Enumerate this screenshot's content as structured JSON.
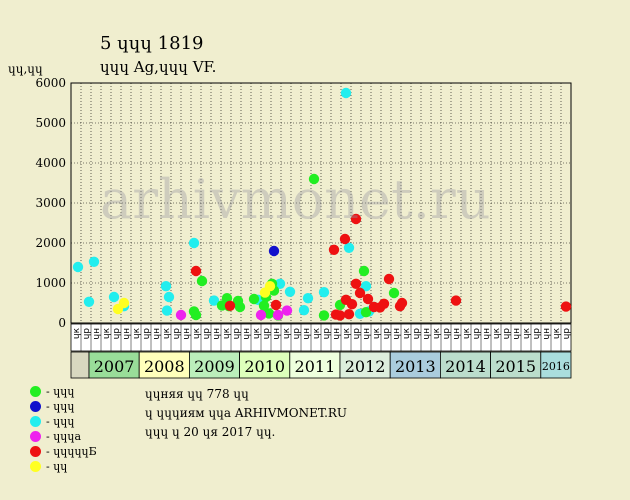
{
  "title_line1": "5 ɥɥɥ 1819",
  "title_line2": "ɥɥɥ Ag,ɥɥɥ VF.",
  "watermark": "arhivmonet.ru",
  "notes": {
    "line1": "ɥɥняя ɥɥ 778 ɥɥ",
    "line2": "ɥ ɥɥɥиям ɥɥа ARHIVMONET.RU",
    "line3": "ɥɥɥ ɥ 20 ɥя 2017 ɥɥ."
  },
  "colors": {
    "background": "#f0eecf",
    "green": "#22ee22",
    "blue": "#1111cc",
    "cyan": "#22eeee",
    "magenta": "#ee22ee",
    "red": "#ee1111",
    "yellow": "#ffff22"
  },
  "chart_data": {
    "type": "scatter",
    "title": "5 ɥɥɥ 1819",
    "subtitle": "ɥɥɥ Ag,ɥɥɥ VF.",
    "ylabel": "ɥɥ,ɥɥ",
    "ylim": [
      0,
      6000
    ],
    "yticks": [
      "0",
      "1000",
      "2000",
      "3000",
      "4000",
      "5000",
      "6000"
    ],
    "grid": true,
    "half_year_labels": [
      "ɥк",
      "ɥр",
      "ɥн",
      "ɥк",
      "ɥр",
      "ɥн",
      "ɥк",
      "ɥр",
      "ɥн",
      "ɥк",
      "ɥр",
      "ɥн",
      "ɥк",
      "ɥр",
      "ɥн",
      "ɥк",
      "ɥр",
      "ɥн",
      "ɥк",
      "ɥр",
      "ɥн",
      "ɥк",
      "ɥр",
      "ɥн",
      "ɥк",
      "ɥр",
      "ɥн",
      "ɥк",
      "ɥр",
      "ɥн",
      "ɥк",
      "ɥр",
      "ɥн",
      "ɥк",
      "ɥр",
      "ɥн",
      "ɥк",
      "ɥр",
      "ɥн",
      "ɥк",
      "ɥр",
      "ɥн",
      "ɥк",
      "ɥр",
      "ɥн",
      "ɥк",
      "ɥр",
      "ɥн",
      "ɥк",
      "ɥр"
    ],
    "years": [
      {
        "label": "2007",
        "fill": "#99dd99"
      },
      {
        "label": "2008",
        "fill": "#ffffbb"
      },
      {
        "label": "2009",
        "fill": "#bbeebb"
      },
      {
        "label": "2010",
        "fill": "#ddffbb"
      },
      {
        "label": "2011",
        "fill": "#eeffdd"
      },
      {
        "label": "2012",
        "fill": "#ddeedd"
      },
      {
        "label": "2013",
        "fill": "#aaccdd"
      },
      {
        "label": "2014",
        "fill": "#bbddcc"
      },
      {
        "label": "2015",
        "fill": "#bbddcc"
      },
      {
        "label": "2016",
        "fill": "#aadddd"
      }
    ],
    "legend": [
      {
        "label": "- ɥɥɥ",
        "color": "#22ee22"
      },
      {
        "label": "- ɥɥɥ",
        "color": "#1111cc"
      },
      {
        "label": "- ɥɥɥ",
        "color": "#22eeee"
      },
      {
        "label": "- ɥɥɥа",
        "color": "#ee22ee"
      },
      {
        "label": "- ɥɥɥɥɥБ",
        "color": "#ee1111"
      },
      {
        "label": "- ɥɥ",
        "color": "#ffff22"
      }
    ],
    "series": [
      {
        "color": "#22eeee",
        "points": [
          [
            0.2,
            1400
          ],
          [
            1.3,
            530
          ],
          [
            1.8,
            1530
          ],
          [
            3.8,
            650
          ],
          [
            4.8,
            420
          ],
          [
            9.0,
            920
          ],
          [
            9.1,
            310
          ],
          [
            9.3,
            650
          ],
          [
            11.8,
            2000
          ],
          [
            13.8,
            560
          ],
          [
            18.2,
            580
          ],
          [
            20.4,
            980
          ],
          [
            21.4,
            780
          ],
          [
            22.8,
            320
          ],
          [
            23.2,
            620
          ],
          [
            24.8,
            770
          ],
          [
            27.0,
            5750
          ],
          [
            27.3,
            1880
          ],
          [
            28.4,
            230
          ],
          [
            29.0,
            920
          ],
          [
            29.3,
            290
          ],
          [
            29.8,
            400
          ]
        ]
      },
      {
        "color": "#22ee22",
        "points": [
          [
            11.8,
            290
          ],
          [
            12.0,
            200
          ],
          [
            12.6,
            1050
          ],
          [
            14.6,
            440
          ],
          [
            15.1,
            620
          ],
          [
            15.3,
            420
          ],
          [
            16.2,
            550
          ],
          [
            16.4,
            400
          ],
          [
            17.8,
            600
          ],
          [
            18.8,
            430
          ],
          [
            19.0,
            650
          ],
          [
            19.3,
            240
          ],
          [
            19.6,
            980
          ],
          [
            19.8,
            810
          ],
          [
            20.2,
            190
          ],
          [
            23.8,
            3600
          ],
          [
            24.8,
            190
          ],
          [
            26.4,
            450
          ],
          [
            28.8,
            1300
          ],
          [
            29.0,
            270
          ],
          [
            31.8,
            750
          ]
        ]
      },
      {
        "color": "#1111cc",
        "points": [
          [
            19.8,
            1800
          ]
        ]
      },
      {
        "color": "#ee22ee",
        "points": [
          [
            10.5,
            200
          ],
          [
            18.5,
            200
          ],
          [
            20.2,
            200
          ],
          [
            21.1,
            310
          ]
        ]
      },
      {
        "color": "#ee1111",
        "points": [
          [
            12.0,
            1300
          ],
          [
            15.4,
            430
          ],
          [
            20.0,
            450
          ],
          [
            25.8,
            1830
          ],
          [
            26.0,
            210
          ],
          [
            26.4,
            190
          ],
          [
            26.9,
            2100
          ],
          [
            27.0,
            580
          ],
          [
            27.3,
            220
          ],
          [
            27.6,
            470
          ],
          [
            28.0,
            2600
          ],
          [
            28.0,
            980
          ],
          [
            28.4,
            750
          ],
          [
            29.2,
            600
          ],
          [
            29.8,
            400
          ],
          [
            30.4,
            390
          ],
          [
            30.8,
            480
          ],
          [
            31.3,
            1100
          ],
          [
            32.4,
            420
          ],
          [
            32.6,
            500
          ],
          [
            38.0,
            560
          ],
          [
            49.0,
            410
          ]
        ]
      },
      {
        "color": "#ffff22",
        "points": [
          [
            4.2,
            350
          ],
          [
            4.8,
            500
          ],
          [
            18.9,
            760
          ],
          [
            19.4,
            920
          ]
        ]
      }
    ]
  }
}
